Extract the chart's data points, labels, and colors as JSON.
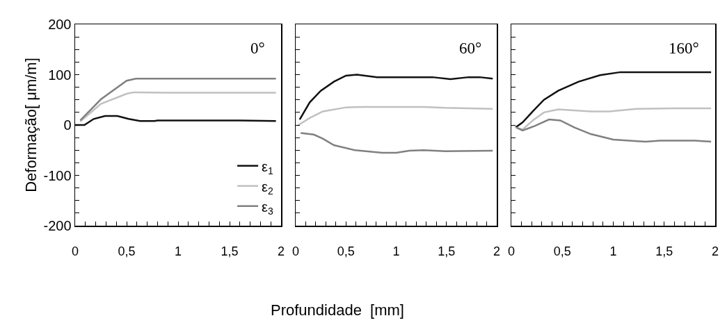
{
  "chart_data": [
    {
      "type": "line",
      "title": "0°",
      "ylabel": "Deformação[ μm/m]",
      "xlim": [
        0,
        2
      ],
      "ylim": [
        -200,
        200
      ],
      "xticks": [
        0,
        {
          "value": 0.1,
          "label": null
        },
        {
          "value": 0.2,
          "label": null
        },
        {
          "value": 0.3,
          "label": null
        },
        {
          "value": 0.4,
          "label": null
        },
        {
          "value": 0.5,
          "label": "0,5"
        },
        {
          "value": 0.6,
          "label": null
        },
        {
          "value": 0.7,
          "label": null
        },
        {
          "value": 0.8,
          "label": null
        },
        {
          "value": 0.9,
          "label": null
        },
        1,
        {
          "value": 1.1,
          "label": null
        },
        {
          "value": 1.2,
          "label": null
        },
        {
          "value": 1.3,
          "label": null
        },
        {
          "value": 1.4,
          "label": null
        },
        {
          "value": 1.5,
          "label": "1,5"
        },
        {
          "value": 1.6,
          "label": null
        },
        {
          "value": 1.7,
          "label": null
        },
        {
          "value": 1.8,
          "label": null
        },
        {
          "value": 1.9,
          "label": null
        },
        2
      ],
      "yticks": [
        -200,
        {
          "value": -175,
          "label": null
        },
        {
          "value": -150,
          "label": null
        },
        {
          "value": -125,
          "label": null
        },
        -100,
        {
          "value": -75,
          "label": null
        },
        {
          "value": -50,
          "label": null
        },
        {
          "value": -25,
          "label": null
        },
        0,
        {
          "value": 25,
          "label": null
        },
        {
          "value": 50,
          "label": null
        },
        {
          "value": 75,
          "label": null
        },
        100,
        {
          "value": 125,
          "label": null
        },
        {
          "value": 150,
          "label": null
        },
        {
          "value": 175,
          "label": null
        },
        200
      ],
      "grid": false,
      "legend": "bottom right",
      "line_style": "solid",
      "marker": "none",
      "series": [
        {
          "name": "ε$_{1}$",
          "color": "#111111",
          "x": [
            0,
            0.09,
            0.18,
            0.29,
            0.41,
            0.52,
            0.63,
            0.77,
            0.8,
            1.2,
            1.6,
            1.95
          ],
          "values": [
            0,
            0,
            12,
            18,
            18,
            12,
            8,
            8,
            9,
            9,
            9,
            8
          ]
        },
        {
          "name": "ε$_{2}$",
          "color": "#c0c0c0",
          "x": [
            0.05,
            0.25,
            0.5,
            0.57,
            0.9,
            1.3,
            1.6,
            1.95
          ],
          "values": [
            7,
            42,
            62,
            65,
            64,
            64,
            64,
            64
          ]
        },
        {
          "name": "ε$_{3}$",
          "color": "#808080",
          "x": [
            0.05,
            0.25,
            0.5,
            0.59,
            1,
            1.5,
            1.95
          ],
          "values": [
            9,
            51,
            88,
            92,
            92,
            92,
            92
          ]
        }
      ]
    },
    {
      "type": "line",
      "title": "60°",
      "xlabel": "Profundidade  [mm]",
      "xlim": [
        0,
        2
      ],
      "ylim": [
        -200,
        200
      ],
      "tick_labels": "x",
      "xticks": [
        0,
        {
          "value": 0.1,
          "label": null
        },
        {
          "value": 0.2,
          "label": null
        },
        {
          "value": 0.3,
          "label": null
        },
        {
          "value": 0.4,
          "label": null
        },
        {
          "value": 0.5,
          "label": "0,5"
        },
        {
          "value": 0.6,
          "label": null
        },
        {
          "value": 0.7,
          "label": null
        },
        {
          "value": 0.8,
          "label": null
        },
        {
          "value": 0.9,
          "label": null
        },
        1,
        {
          "value": 1.1,
          "label": null
        },
        {
          "value": 1.2,
          "label": null
        },
        {
          "value": 1.3,
          "label": null
        },
        {
          "value": 1.4,
          "label": null
        },
        {
          "value": 1.5,
          "label": "1,5"
        },
        {
          "value": 1.6,
          "label": null
        },
        {
          "value": 1.7,
          "label": null
        },
        {
          "value": 1.8,
          "label": null
        },
        {
          "value": 1.9,
          "label": null
        },
        2
      ],
      "yticks": [
        -200,
        {
          "value": -175,
          "label": null
        },
        {
          "value": -150,
          "label": null
        },
        {
          "value": -125,
          "label": null
        },
        -100,
        {
          "value": -75,
          "label": null
        },
        {
          "value": -50,
          "label": null
        },
        {
          "value": -25,
          "label": null
        },
        0,
        {
          "value": 25,
          "label": null
        },
        {
          "value": 50,
          "label": null
        },
        {
          "value": 75,
          "label": null
        },
        100,
        {
          "value": 125,
          "label": null
        },
        {
          "value": 150,
          "label": null
        },
        {
          "value": 175,
          "label": null
        },
        200
      ],
      "grid": false,
      "line_style": "solid",
      "marker": "none",
      "series": [
        {
          "color": "#111111",
          "x": [
            0.04,
            0.14,
            0.25,
            0.38,
            0.5,
            0.61,
            0.81,
            1.36,
            1.54,
            1.72,
            1.83,
            1.96
          ],
          "values": [
            11,
            45,
            68,
            86,
            98,
            100,
            95,
            95,
            91,
            95,
            95,
            92
          ]
        },
        {
          "color": "#c0c0c0",
          "x": [
            0.02,
            0.14,
            0.27,
            0.5,
            0.7,
            1.27,
            1.49,
            1.96
          ],
          "values": [
            -1,
            14,
            27,
            35,
            36,
            36,
            34,
            32
          ]
        },
        {
          "color": "#808080",
          "x": [
            0.05,
            0.18,
            0.27,
            0.38,
            0.59,
            0.86,
            1,
            1.13,
            1.27,
            1.49,
            1.96
          ],
          "values": [
            -16,
            -19,
            -27,
            -40,
            -50,
            -55,
            -55,
            -51,
            -50,
            -52,
            -51
          ]
        }
      ]
    },
    {
      "type": "line",
      "title": "160°",
      "xlim": [
        0,
        2
      ],
      "ylim": [
        -200,
        200
      ],
      "tick_labels": "x",
      "xticks": [
        0,
        {
          "value": 0.1,
          "label": null
        },
        {
          "value": 0.2,
          "label": null
        },
        {
          "value": 0.3,
          "label": null
        },
        {
          "value": 0.4,
          "label": null
        },
        {
          "value": 0.5,
          "label": "0,5"
        },
        {
          "value": 0.6,
          "label": null
        },
        {
          "value": 0.7,
          "label": null
        },
        {
          "value": 0.8,
          "label": null
        },
        {
          "value": 0.9,
          "label": null
        },
        1,
        {
          "value": 1.1,
          "label": null
        },
        {
          "value": 1.2,
          "label": null
        },
        {
          "value": 1.3,
          "label": null
        },
        {
          "value": 1.4,
          "label": null
        },
        {
          "value": 1.5,
          "label": "1,5"
        },
        {
          "value": 1.6,
          "label": null
        },
        {
          "value": 1.7,
          "label": null
        },
        {
          "value": 1.8,
          "label": null
        },
        {
          "value": 1.9,
          "label": null
        },
        2
      ],
      "yticks": [
        -200,
        {
          "value": -175,
          "label": null
        },
        {
          "value": -150,
          "label": null
        },
        {
          "value": -125,
          "label": null
        },
        -100,
        {
          "value": -75,
          "label": null
        },
        {
          "value": -50,
          "label": null
        },
        {
          "value": -25,
          "label": null
        },
        0,
        {
          "value": 25,
          "label": null
        },
        {
          "value": 50,
          "label": null
        },
        {
          "value": 75,
          "label": null
        },
        100,
        {
          "value": 125,
          "label": null
        },
        {
          "value": 150,
          "label": null
        },
        {
          "value": 175,
          "label": null
        },
        200
      ],
      "grid": false,
      "line_style": "solid",
      "marker": "none",
      "series": [
        {
          "color": "#111111",
          "x": [
            0.04,
            0.11,
            0.21,
            0.32,
            0.46,
            0.66,
            0.87,
            1.07,
            1.5,
            1.96
          ],
          "values": [
            -5,
            5,
            27,
            50,
            68,
            86,
            99,
            105,
            105,
            105
          ]
        },
        {
          "color": "#c0c0c0",
          "x": [
            0.04,
            0.11,
            0.21,
            0.32,
            0.46,
            0.78,
            0.96,
            1.23,
            1.6,
            1.96
          ],
          "values": [
            -5,
            -9,
            9,
            25,
            31,
            27,
            27,
            32,
            33,
            33
          ]
        },
        {
          "color": "#808080",
          "x": [
            0.05,
            0.11,
            0.23,
            0.37,
            0.48,
            0.62,
            0.78,
            1,
            1.23,
            1.32,
            1.46,
            1.8,
            1.96
          ],
          "values": [
            -5,
            -11,
            -2,
            11,
            9,
            -5,
            -18,
            -29,
            -32,
            -33,
            -31,
            -31,
            -33
          ]
        }
      ]
    }
  ]
}
